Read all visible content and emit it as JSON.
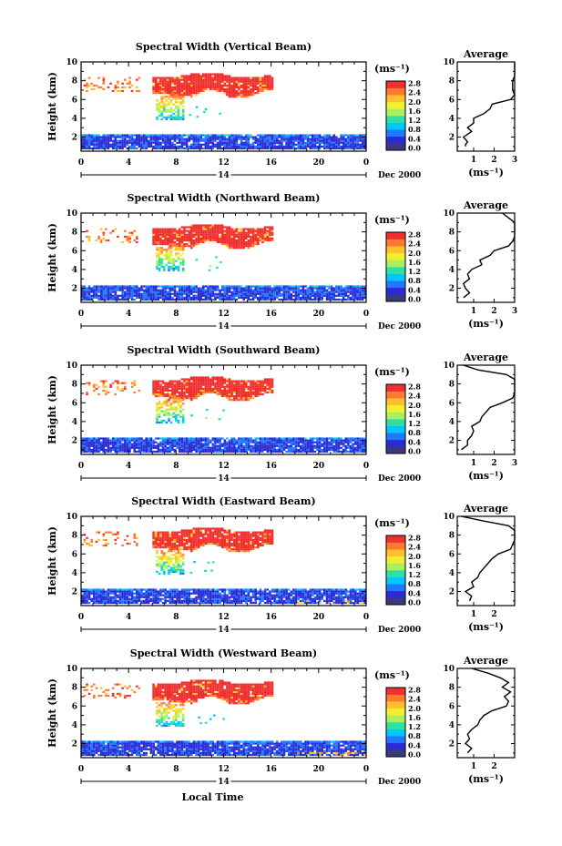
{
  "figure": {
    "x_axis_label": "Local Time",
    "date_label": "Dec 2000",
    "day_label": "14",
    "x_tick_labels": [
      "0",
      "4",
      "8",
      "12",
      "16",
      "20",
      "0"
    ],
    "y_axis_label": "Height (km)",
    "y_tick_labels": [
      "2",
      "4",
      "6",
      "8",
      "10"
    ],
    "colorbar_unit": "(ms⁻¹)",
    "colorbar_tick_labels": [
      "2.8",
      "2.4",
      "2.0",
      "1.6",
      "1.2",
      "0.8",
      "0.4",
      "0.0"
    ],
    "average_title": "Average",
    "average_unit": "(ms⁻¹)",
    "colormap": [
      "#3a3a7a",
      "#2b2bd6",
      "#1f78ff",
      "#00c8ff",
      "#30e0a0",
      "#a8f060",
      "#f0f030",
      "#ffc030",
      "#ff7a30",
      "#f03030"
    ]
  },
  "chart_data": [
    {
      "type": "heatmap",
      "title": "Spectral Width (Vertical Beam)",
      "x_hours": [
        0,
        24
      ],
      "y_km": [
        0.5,
        10
      ],
      "profile_ticks": [
        "1",
        "2",
        "3"
      ],
      "profile_xlim": [
        0.2,
        3
      ],
      "profile": [
        [
          1.0,
          0.6
        ],
        [
          1.2,
          0.6
        ],
        [
          1.5,
          0.7
        ],
        [
          2.0,
          0.5
        ],
        [
          2.3,
          0.7
        ],
        [
          2.6,
          0.9
        ],
        [
          3.0,
          0.7
        ],
        [
          3.5,
          1.0
        ],
        [
          4.0,
          1.0
        ],
        [
          4.5,
          1.5
        ],
        [
          5.0,
          1.8
        ],
        [
          5.5,
          1.9
        ],
        [
          6.0,
          2.8
        ],
        [
          6.5,
          3.0
        ],
        [
          7.0,
          2.9
        ],
        [
          7.5,
          2.9
        ],
        [
          8.0,
          2.9
        ],
        [
          8.5,
          3.0
        ],
        [
          9.0,
          3.0
        ],
        [
          9.5,
          3.0
        ],
        [
          10.0,
          3.0
        ]
      ]
    },
    {
      "type": "heatmap",
      "title": "Spectral Width (Northward Beam)",
      "x_hours": [
        0,
        24
      ],
      "y_km": [
        0.5,
        10
      ],
      "profile_ticks": [
        "1",
        "2",
        "3"
      ],
      "profile_xlim": [
        0.2,
        3
      ],
      "profile": [
        [
          1.0,
          0.5
        ],
        [
          1.5,
          0.8
        ],
        [
          2.0,
          0.6
        ],
        [
          2.5,
          0.5
        ],
        [
          3.0,
          0.8
        ],
        [
          3.5,
          0.7
        ],
        [
          4.0,
          0.9
        ],
        [
          4.5,
          1.4
        ],
        [
          5.0,
          1.3
        ],
        [
          5.5,
          1.8
        ],
        [
          6.0,
          2.0
        ],
        [
          6.5,
          2.7
        ],
        [
          7.0,
          2.9
        ],
        [
          7.5,
          3.0
        ],
        [
          8.0,
          3.0
        ],
        [
          8.5,
          3.0
        ],
        [
          9.0,
          3.0
        ],
        [
          9.5,
          2.7
        ],
        [
          10.0,
          2.4
        ]
      ]
    },
    {
      "type": "heatmap",
      "title": "Spectral Width (Southward Beam)",
      "x_hours": [
        0,
        24
      ],
      "y_km": [
        0.5,
        10
      ],
      "profile_ticks": [
        "1",
        "2",
        "3"
      ],
      "profile_xlim": [
        0.2,
        3
      ],
      "profile": [
        [
          1.0,
          0.4
        ],
        [
          1.5,
          0.7
        ],
        [
          2.0,
          0.7
        ],
        [
          2.5,
          0.9
        ],
        [
          3.0,
          1.0
        ],
        [
          3.5,
          0.9
        ],
        [
          4.0,
          1.3
        ],
        [
          4.5,
          1.4
        ],
        [
          5.0,
          1.6
        ],
        [
          5.5,
          1.8
        ],
        [
          6.0,
          2.4
        ],
        [
          6.5,
          2.9
        ],
        [
          7.0,
          3.0
        ],
        [
          7.5,
          3.0
        ],
        [
          8.0,
          3.0
        ],
        [
          8.5,
          3.0
        ],
        [
          9.0,
          2.6
        ],
        [
          9.5,
          1.2
        ],
        [
          10.0,
          0.5
        ]
      ]
    },
    {
      "type": "heatmap",
      "title": "Spectral Width (Eastward Beam)",
      "x_hours": [
        0,
        24
      ],
      "y_km": [
        0.5,
        10
      ],
      "profile_ticks": [
        "1",
        "2"
      ],
      "profile_xlim": [
        0.2,
        3
      ],
      "profile": [
        [
          1.0,
          0.8
        ],
        [
          1.5,
          0.9
        ],
        [
          2.0,
          0.6
        ],
        [
          2.5,
          1.0
        ],
        [
          3.0,
          0.9
        ],
        [
          3.5,
          1.2
        ],
        [
          4.0,
          1.3
        ],
        [
          4.5,
          1.5
        ],
        [
          5.0,
          1.7
        ],
        [
          5.5,
          1.9
        ],
        [
          6.0,
          2.2
        ],
        [
          6.5,
          2.8
        ],
        [
          7.0,
          2.9
        ],
        [
          7.5,
          3.0
        ],
        [
          8.0,
          3.0
        ],
        [
          8.5,
          3.0
        ],
        [
          9.0,
          2.7
        ],
        [
          9.5,
          1.5
        ],
        [
          10.0,
          0.4
        ]
      ]
    },
    {
      "type": "heatmap",
      "title": "Spectral Width (Westward Beam)",
      "x_hours": [
        0,
        24
      ],
      "y_km": [
        0.5,
        10
      ],
      "profile_ticks": [
        "1",
        "2"
      ],
      "profile_xlim": [
        0.2,
        3
      ],
      "profile": [
        [
          1.0,
          0.7
        ],
        [
          1.5,
          0.9
        ],
        [
          2.0,
          0.6
        ],
        [
          2.5,
          0.8
        ],
        [
          3.0,
          0.7
        ],
        [
          3.5,
          0.9
        ],
        [
          4.0,
          1.2
        ],
        [
          4.5,
          1.3
        ],
        [
          5.0,
          1.5
        ],
        [
          5.5,
          1.9
        ],
        [
          6.0,
          2.6
        ],
        [
          6.5,
          2.7
        ],
        [
          7.0,
          2.5
        ],
        [
          7.5,
          2.8
        ],
        [
          8.0,
          2.4
        ],
        [
          8.5,
          2.7
        ],
        [
          9.0,
          2.3
        ],
        [
          9.5,
          1.7
        ],
        [
          10.0,
          0.9
        ]
      ]
    }
  ]
}
